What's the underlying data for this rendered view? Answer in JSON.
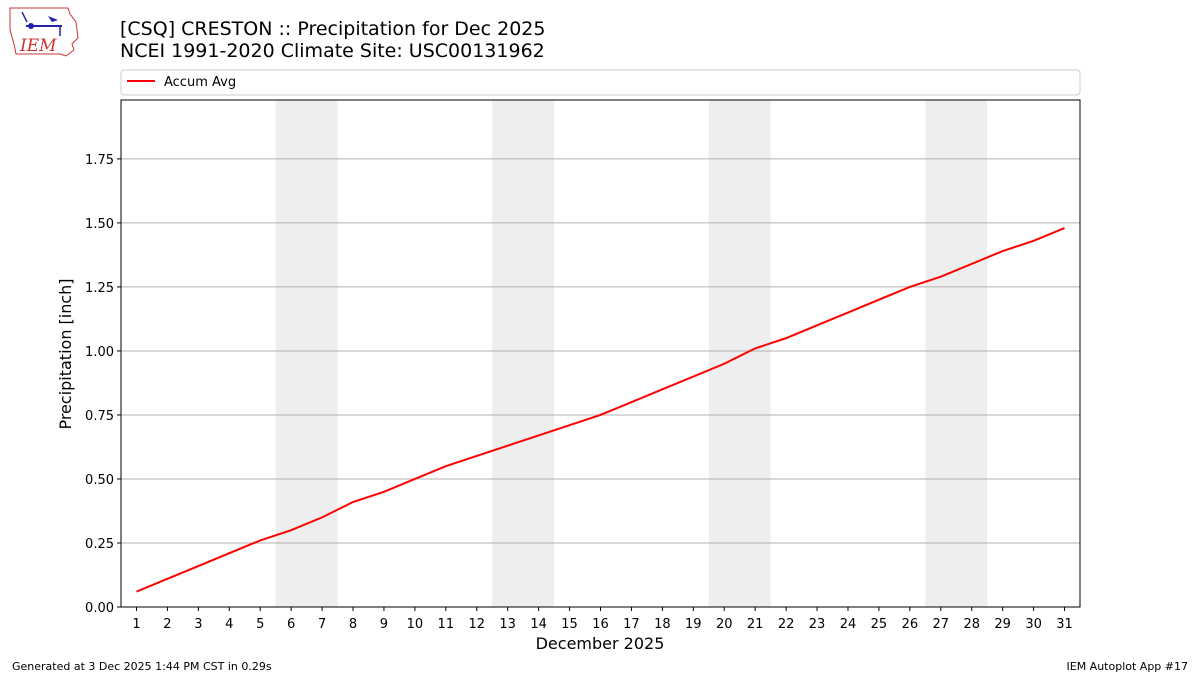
{
  "chart_data": {
    "type": "line",
    "title": "[CSQ] CRESTON :: Precipitation for Dec 2025",
    "subtitle": "NCEI 1991-2020 Climate Site: USC00131962",
    "xlabel": "December 2025",
    "ylabel": "Precipitation [inch]",
    "x": [
      1,
      2,
      3,
      4,
      5,
      6,
      7,
      8,
      9,
      10,
      11,
      12,
      13,
      14,
      15,
      16,
      17,
      18,
      19,
      20,
      21,
      22,
      23,
      24,
      25,
      26,
      27,
      28,
      29,
      30,
      31
    ],
    "series": [
      {
        "name": "Accum Avg",
        "color": "#ff0000",
        "values": [
          0.06,
          0.11,
          0.16,
          0.21,
          0.26,
          0.3,
          0.35,
          0.41,
          0.45,
          0.5,
          0.55,
          0.59,
          0.63,
          0.67,
          0.71,
          0.75,
          0.8,
          0.85,
          0.9,
          0.95,
          1.01,
          1.05,
          1.1,
          1.15,
          1.2,
          1.25,
          1.29,
          1.34,
          1.39,
          1.43,
          1.48
        ]
      }
    ],
    "xlim": [
      0.5,
      31.5
    ],
    "xticks": [
      1,
      2,
      3,
      4,
      5,
      6,
      7,
      8,
      9,
      10,
      11,
      12,
      13,
      14,
      15,
      16,
      17,
      18,
      19,
      20,
      21,
      22,
      23,
      24,
      25,
      26,
      27,
      28,
      29,
      30,
      31
    ],
    "ylim": [
      0,
      1.98
    ],
    "yticks": [
      {
        "value": 0,
        "label": "0.00"
      },
      0.25,
      {
        "value": 0.5,
        "label": "0.50"
      },
      0.75,
      {
        "value": 1,
        "label": "1.00"
      },
      1.25,
      {
        "value": 1.5,
        "label": "1.50"
      },
      1.75
    ],
    "grid": true,
    "legend": "top",
    "shaded_spans": [
      [
        5.5,
        7.5
      ],
      [
        12.5,
        14.5
      ],
      [
        19.5,
        21.5
      ],
      [
        26.5,
        28.5
      ]
    ],
    "shade_color": "#eeeeee"
  },
  "logo_text": "IEM",
  "footer": {
    "left": "Generated at 3 Dec 2025 1:44 PM CST in 0.29s",
    "right": "IEM Autoplot App #17"
  }
}
